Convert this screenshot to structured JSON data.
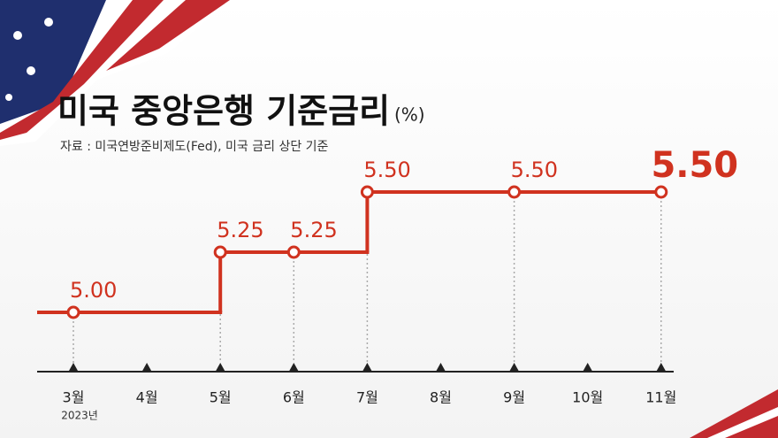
{
  "chart_data": {
    "type": "step-line",
    "title": "미국 중앙은행 기준금리",
    "unit": "(%)",
    "subtitle": "자료 : 미국연방준비제도(Fed), 미국 금리 상단 기준",
    "x_annotation": "2023년",
    "categories": [
      "3월",
      "4월",
      "5월",
      "6월",
      "7월",
      "8월",
      "9월",
      "10월",
      "11월"
    ],
    "values": [
      5,
      5,
      5.25,
      5.25,
      5.5,
      5.5,
      5.5,
      5.5,
      5.5
    ],
    "value_labels": [
      "5.00",
      null,
      "5.25",
      "5.25",
      "5.50",
      null,
      "5.50",
      null,
      "5.50"
    ],
    "color": "#d0321f"
  }
}
